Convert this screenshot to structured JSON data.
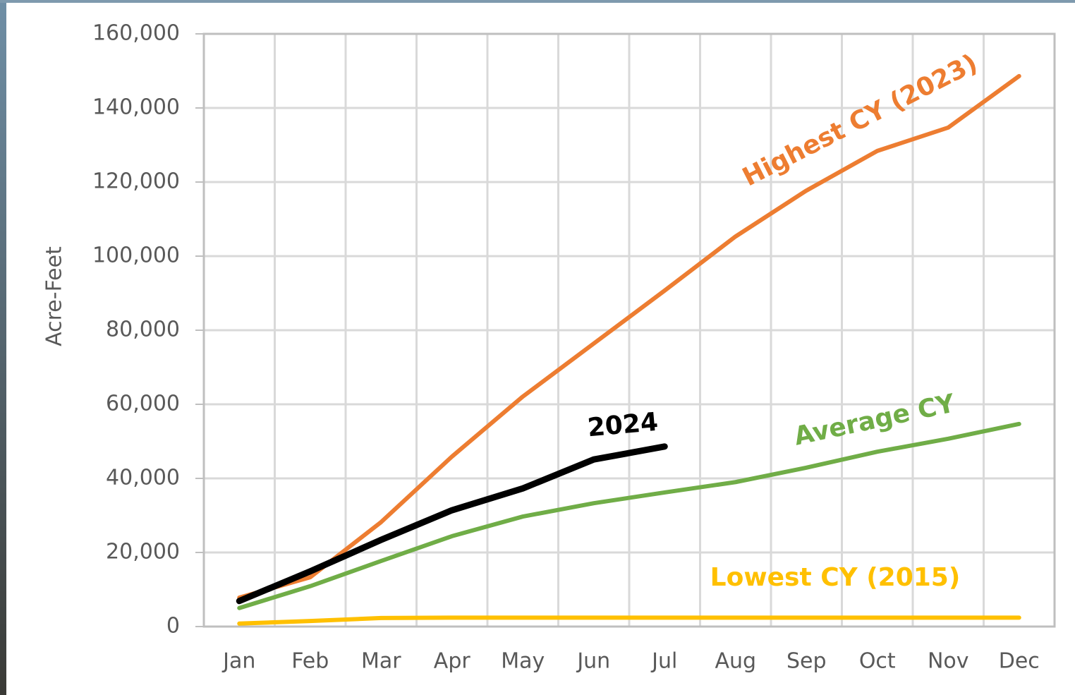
{
  "chart_data": {
    "type": "line",
    "y_axis_label": "Acre-Feet",
    "categories": [
      "Jan",
      "Feb",
      "Mar",
      "Apr",
      "May",
      "Jun",
      "Jul",
      "Aug",
      "Sep",
      "Oct",
      "Nov",
      "Dec"
    ],
    "series": [
      {
        "name": "Highest CY (2023)",
        "color": "#ed7d31",
        "values": [
          7800,
          13300,
          28200,
          45900,
          62100,
          76400,
          90700,
          105300,
          117700,
          128400,
          134700,
          148600
        ]
      },
      {
        "name": "Average CY",
        "color": "#70ad47",
        "values": [
          5000,
          10900,
          17700,
          24400,
          29700,
          33300,
          36200,
          39000,
          42900,
          47200,
          50700,
          54700
        ]
      },
      {
        "name": "Lowest CY (2015)",
        "color": "#ffc000",
        "values": [
          800,
          1500,
          2300,
          2400,
          2400,
          2400,
          2400,
          2400,
          2400,
          2400,
          2400,
          2400
        ]
      },
      {
        "name": "2024",
        "color": "#000000",
        "values": [
          6900,
          14900,
          23400,
          31400,
          37300,
          45100,
          48600,
          null,
          null,
          null,
          null,
          null
        ]
      }
    ],
    "ylim": [
      0,
      160000
    ],
    "yticks": [
      0,
      {
        "value": 20000,
        "label": "20,000"
      },
      {
        "value": 40000,
        "label": "40,000"
      },
      {
        "value": 60000,
        "label": "60,000"
      },
      {
        "value": 80000,
        "label": "80,000"
      },
      {
        "value": 100000,
        "label": "100,000"
      },
      {
        "value": 120000,
        "label": "120,000"
      },
      {
        "value": 140000,
        "label": "140,000"
      },
      {
        "value": 160000,
        "label": "160,000"
      }
    ],
    "grid": true
  }
}
